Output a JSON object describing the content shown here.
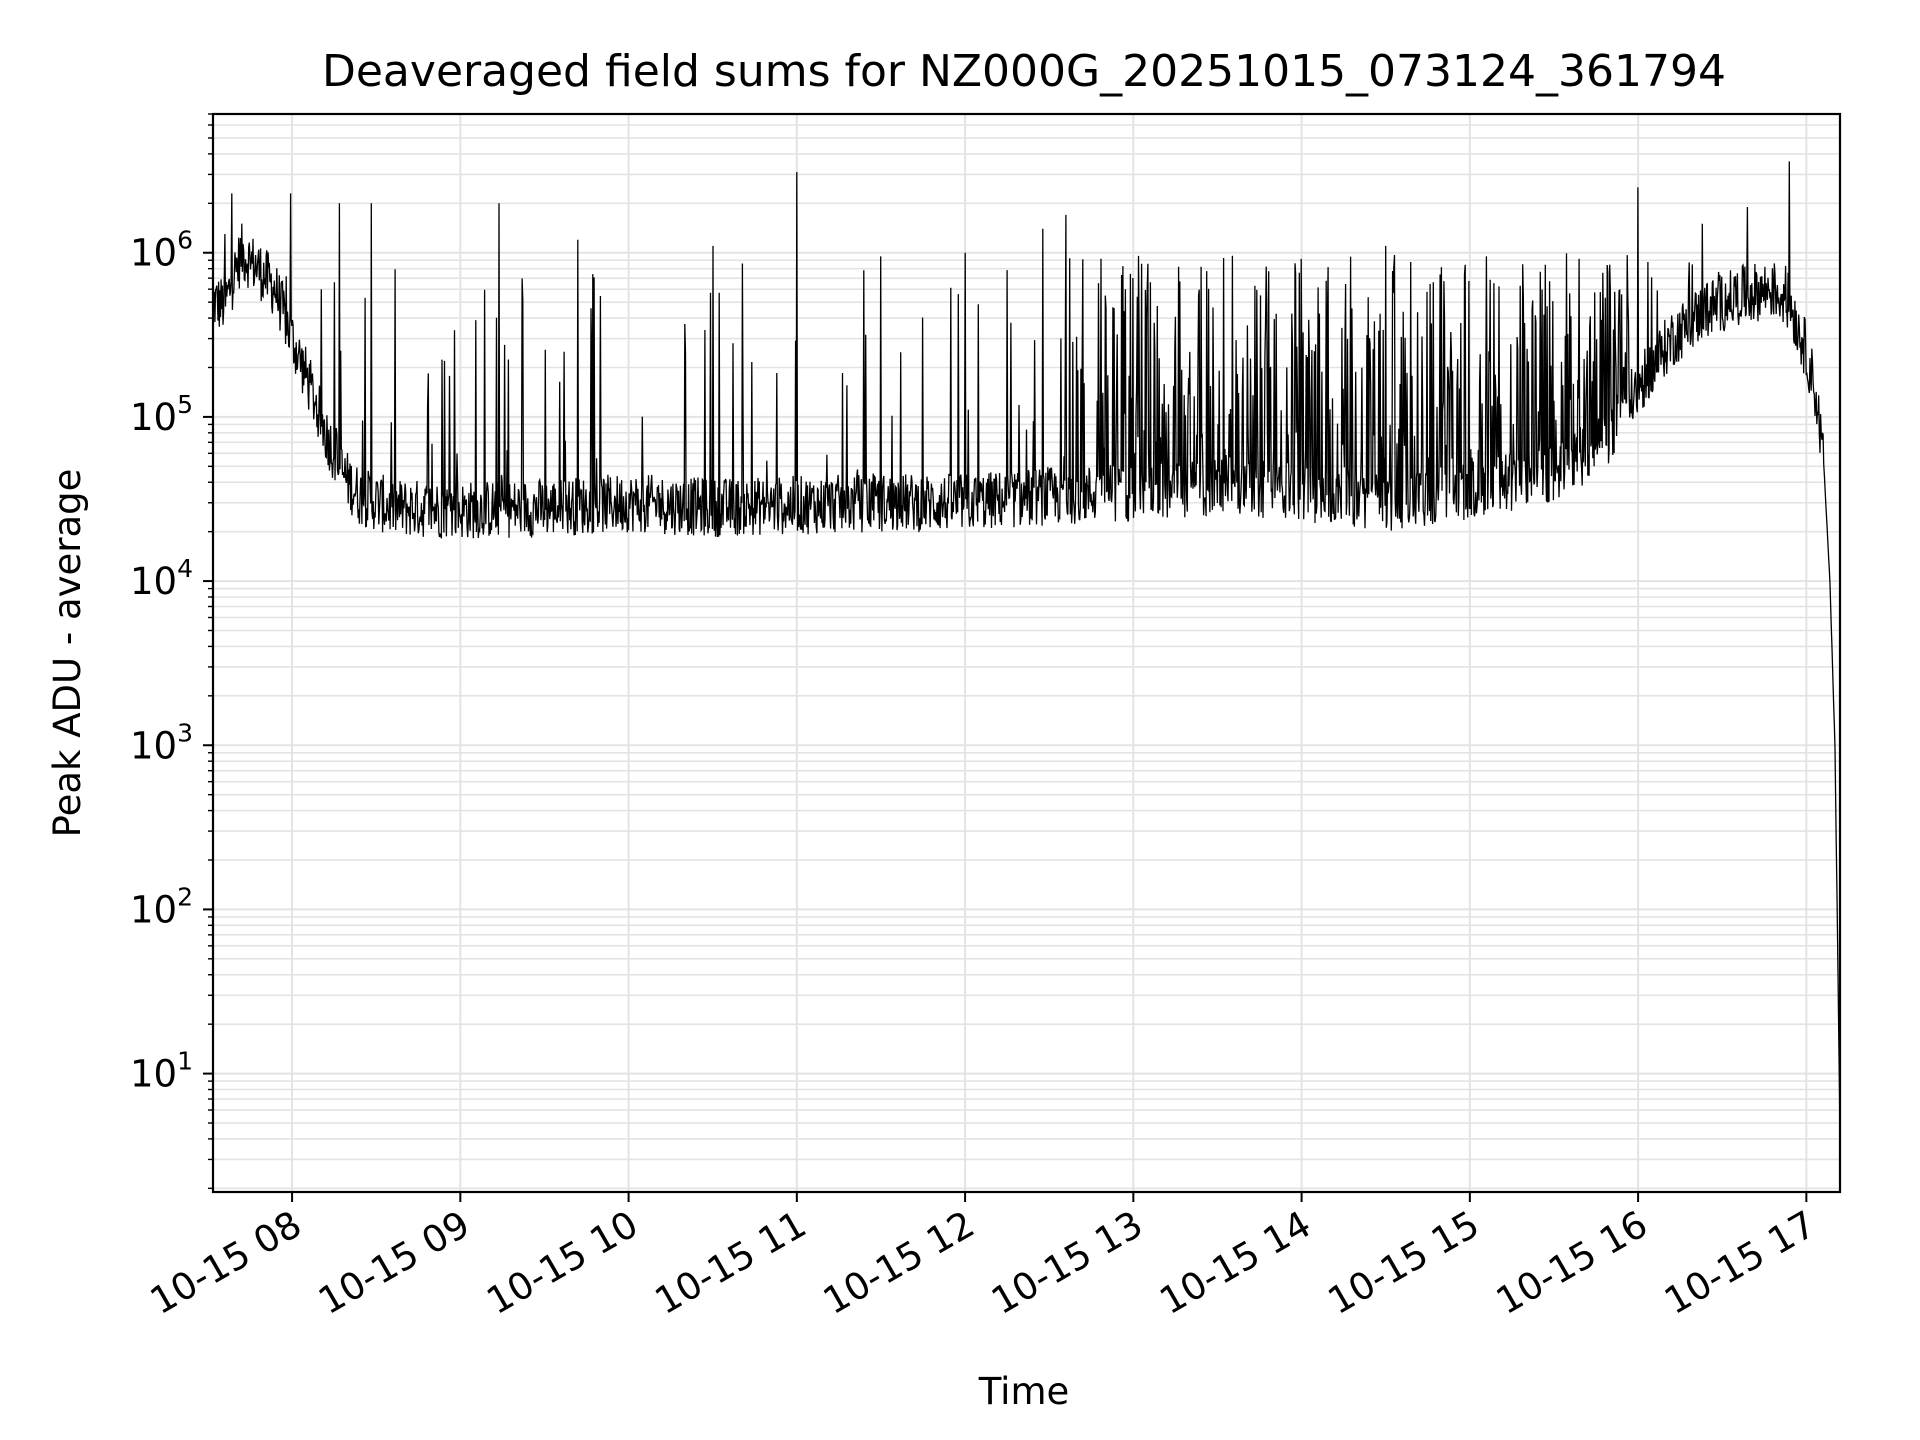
{
  "chart_data": {
    "type": "line",
    "title": "Deaveraged field sums for NZ000G_20251015_073124_361794",
    "xlabel": "Time",
    "ylabel": "Peak ADU - average",
    "yscale": "log",
    "ylim": [
      1.9,
      7000000
    ],
    "xlim_hours": [
      7.53,
      17.2
    ],
    "grid": true,
    "line_color": "#000000",
    "x_ticks": [
      {
        "hour": 8,
        "label": "10-15 08"
      },
      {
        "hour": 9,
        "label": "10-15 09"
      },
      {
        "hour": 10,
        "label": "10-15 10"
      },
      {
        "hour": 11,
        "label": "10-15 11"
      },
      {
        "hour": 12,
        "label": "10-15 12"
      },
      {
        "hour": 13,
        "label": "10-15 13"
      },
      {
        "hour": 14,
        "label": "10-15 14"
      },
      {
        "hour": 15,
        "label": "10-15 15"
      },
      {
        "hour": 16,
        "label": "10-15 16"
      },
      {
        "hour": 17,
        "label": "10-15 17"
      }
    ],
    "y_ticks": [
      {
        "exp": 1,
        "base": "10",
        "sup": "1"
      },
      {
        "exp": 2,
        "base": "10",
        "sup": "2"
      },
      {
        "exp": 3,
        "base": "10",
        "sup": "3"
      },
      {
        "exp": 4,
        "base": "10",
        "sup": "4"
      },
      {
        "exp": 5,
        "base": "10",
        "sup": "5"
      },
      {
        "exp": 6,
        "base": "10",
        "sup": "6"
      }
    ],
    "series": [
      {
        "name": "field sums",
        "baseline_points": [
          [
            7.53,
            500000
          ],
          [
            7.6,
            480000
          ],
          [
            7.65,
            700000
          ],
          [
            7.7,
            1000000
          ],
          [
            7.8,
            800000
          ],
          [
            7.9,
            600000
          ],
          [
            8.0,
            300000
          ],
          [
            8.1,
            160000
          ],
          [
            8.2,
            80000
          ],
          [
            8.3,
            45000
          ],
          [
            8.4,
            33000
          ],
          [
            8.6,
            28000
          ],
          [
            9.0,
            27000
          ],
          [
            9.5,
            28000
          ],
          [
            10.0,
            30000
          ],
          [
            10.5,
            28000
          ],
          [
            11.0,
            29000
          ],
          [
            11.5,
            30000
          ],
          [
            12.0,
            30000
          ],
          [
            12.5,
            33000
          ],
          [
            13.0,
            35000
          ],
          [
            13.5,
            37000
          ],
          [
            14.0,
            35000
          ],
          [
            14.5,
            30000
          ],
          [
            15.0,
            36000
          ],
          [
            15.5,
            45000
          ],
          [
            15.8,
            70000
          ],
          [
            16.0,
            150000
          ],
          [
            16.2,
            300000
          ],
          [
            16.4,
            450000
          ],
          [
            16.6,
            550000
          ],
          [
            16.8,
            600000
          ],
          [
            16.9,
            500000
          ],
          [
            17.0,
            250000
          ],
          [
            17.05,
            150000
          ],
          [
            17.1,
            60000
          ],
          [
            17.14,
            10000
          ],
          [
            17.17,
            1000
          ],
          [
            17.19,
            30
          ],
          [
            17.2,
            4
          ]
        ],
        "spikes": [
          {
            "hour": 7.6,
            "value": 1300000
          },
          {
            "hour": 7.64,
            "value": 2300000
          },
          {
            "hour": 7.99,
            "value": 2300000
          },
          {
            "hour": 8.28,
            "value": 2000000
          },
          {
            "hour": 8.47,
            "value": 2000000
          },
          {
            "hour": 9.23,
            "value": 2000000
          },
          {
            "hour": 9.7,
            "value": 1200000
          },
          {
            "hour": 10.5,
            "value": 1100000
          },
          {
            "hour": 11.0,
            "value": 3100000
          },
          {
            "hour": 11.5,
            "value": 950000
          },
          {
            "hour": 12.0,
            "value": 1000000
          },
          {
            "hour": 12.46,
            "value": 1400000
          },
          {
            "hour": 12.6,
            "value": 1700000
          },
          {
            "hour": 14.5,
            "value": 1100000
          },
          {
            "hour": 16.0,
            "value": 2500000
          },
          {
            "hour": 16.38,
            "value": 1500000
          },
          {
            "hour": 16.65,
            "value": 1900000
          },
          {
            "hour": 16.9,
            "value": 3600000
          }
        ],
        "dense_band": {
          "start_hour": 12.55,
          "end_hour": 15.95,
          "peak": 1000000
        }
      }
    ]
  }
}
